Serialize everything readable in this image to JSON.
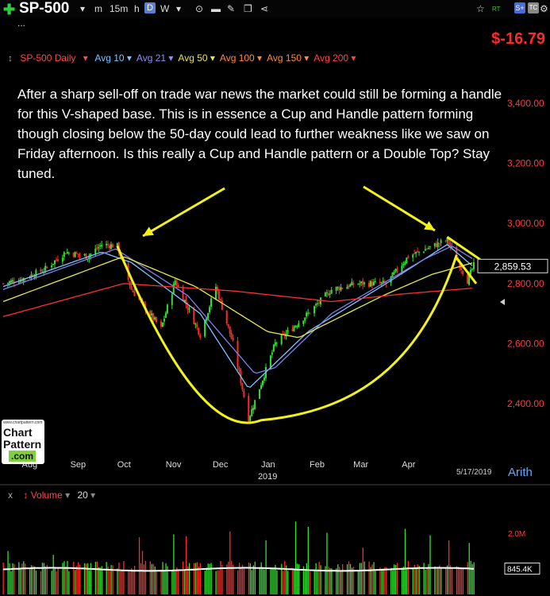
{
  "toolbar": {
    "symbol": "SP-500",
    "buttons": [
      "m",
      "15m",
      "h",
      "D",
      "W"
    ],
    "active_interval": "D",
    "right_icons": [
      "star-icon",
      "rt-icon",
      "s-icon",
      "tc-icon",
      "gear-icon"
    ],
    "rt_label": "RT",
    "s_label": "S+",
    "tc_label": "TC",
    "ellipsis": "..."
  },
  "price_change": "$-16.79",
  "legend": {
    "main": "SP-500 Daily",
    "averages": [
      {
        "label": "Avg 10",
        "color": "#7cc4ff"
      },
      {
        "label": "Avg 21",
        "color": "#8e8efc"
      },
      {
        "label": "Avg 50",
        "color": "#e8e84a"
      },
      {
        "label": "Avg 100",
        "color": "#ff8a3c"
      },
      {
        "label": "Avg 150",
        "color": "#ff8a3c"
      },
      {
        "label": "Avg 200",
        "color": "#ff4444"
      }
    ]
  },
  "annotation": "After a sharp sell-off on trade war news the market could still be forming a handle for this V-shaped base. This is in essence a Cup and Handle pattern forming though closing below the 50-day could lead to further weakness like we saw on Friday afternoon. Is this really a Cup and Handle pattern or a Double Top? Stay tuned.",
  "logo": {
    "small": "www.chartpattern.com",
    "line1": "Chart",
    "line2": "Pattern",
    "line3": ".com"
  },
  "scale_type": "Arith",
  "last_date": "5/17/2019",
  "volume": {
    "label": "Volume",
    "period": "20",
    "close_icon": "x",
    "ticks": [
      "2.0M",
      "845.4K"
    ]
  },
  "chart_data": {
    "type": "candlestick",
    "title": "",
    "yaxis": {
      "ticks": [
        2400,
        2600,
        2800,
        3000,
        3200,
        3400
      ],
      "tick_labels": [
        "2,400.00",
        "2,600.00",
        "2,800.00",
        "3,000.00",
        "3,200.00",
        "3,400.00"
      ],
      "range": [
        2300,
        3480
      ]
    },
    "xaxis": {
      "labels": [
        "Aug",
        "Sep",
        "Oct",
        "Nov",
        "Dec",
        "Jan",
        "Feb",
        "Mar",
        "Apr"
      ],
      "year_label": "2019"
    },
    "last_price": 2859.53,
    "last_price_label": "2,859.53",
    "price_path": [
      [
        "2018-07-20",
        2800
      ],
      [
        "2018-08-01",
        2815
      ],
      [
        "2018-08-15",
        2845
      ],
      [
        "2018-08-29",
        2905
      ],
      [
        "2018-09-12",
        2890
      ],
      [
        "2018-09-21",
        2930
      ],
      [
        "2018-10-01",
        2925
      ],
      [
        "2018-10-10",
        2780
      ],
      [
        "2018-10-29",
        2650
      ],
      [
        "2018-11-07",
        2810
      ],
      [
        "2018-11-23",
        2630
      ],
      [
        "2018-12-03",
        2790
      ],
      [
        "2018-12-14",
        2600
      ],
      [
        "2018-12-24",
        2350
      ],
      [
        "2019-01-10",
        2600
      ],
      [
        "2019-01-31",
        2700
      ],
      [
        "2019-02-15",
        2780
      ],
      [
        "2019-03-04",
        2800
      ],
      [
        "2019-03-22",
        2800
      ],
      [
        "2019-04-05",
        2890
      ],
      [
        "2019-04-30",
        2945
      ],
      [
        "2019-05-13",
        2810
      ],
      [
        "2019-05-17",
        2860
      ]
    ],
    "moving_averages": {
      "avg10": [
        [
          "2018-07-20",
          2790
        ],
        [
          "2018-09-21",
          2905
        ],
        [
          "2018-10-10",
          2870
        ],
        [
          "2018-11-23",
          2700
        ],
        [
          "2018-12-24",
          2450
        ],
        [
          "2019-01-31",
          2640
        ],
        [
          "2019-03-22",
          2800
        ],
        [
          "2019-04-30",
          2930
        ],
        [
          "2019-05-17",
          2855
        ]
      ],
      "avg21": [
        [
          "2018-07-20",
          2780
        ],
        [
          "2018-09-30",
          2915
        ],
        [
          "2018-11-15",
          2760
        ],
        [
          "2018-12-28",
          2500
        ],
        [
          "2019-01-10",
          2520
        ],
        [
          "2019-02-15",
          2700
        ],
        [
          "2019-04-15",
          2880
        ],
        [
          "2019-05-03",
          2925
        ],
        [
          "2019-05-17",
          2880
        ]
      ],
      "avg50": [
        [
          "2018-07-20",
          2740
        ],
        [
          "2018-10-05",
          2890
        ],
        [
          "2018-11-20",
          2790
        ],
        [
          "2019-01-05",
          2640
        ],
        [
          "2019-01-25",
          2620
        ],
        [
          "2019-03-20",
          2760
        ],
        [
          "2019-04-20",
          2830
        ],
        [
          "2019-05-17",
          2870
        ]
      ],
      "avg200": [
        [
          "2018-07-20",
          2690
        ],
        [
          "2018-10-05",
          2800
        ],
        [
          "2018-12-15",
          2775
        ],
        [
          "2019-02-15",
          2740
        ],
        [
          "2019-04-01",
          2765
        ],
        [
          "2019-05-17",
          2785
        ]
      ]
    },
    "volume_range": [
      0,
      2.6
    ],
    "volume_unit": "M"
  }
}
